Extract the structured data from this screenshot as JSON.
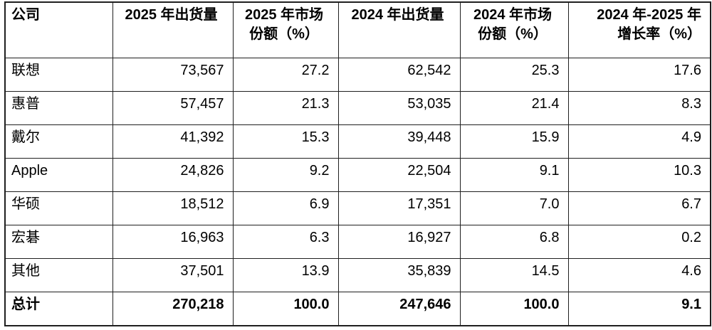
{
  "header": {
    "company": "公司",
    "ship2025": "2025 年出货量",
    "share2025_line1": "2025 年市场",
    "share2025_line2": "份额（%）",
    "ship2024": "2024 年出货量",
    "share2024_line1": "2024 年市场",
    "share2024_line2": "份额（%）",
    "growth_line1": "2024 年-2025 年",
    "growth_line2": "增长率（%）"
  },
  "rows": [
    {
      "bold": false,
      "cells": [
        "联想",
        "73,567",
        "27.2",
        "62,542",
        "25.3",
        "17.6"
      ]
    },
    {
      "bold": false,
      "cells": [
        "惠普",
        "57,457",
        "21.3",
        "53,035",
        "21.4",
        "8.3"
      ]
    },
    {
      "bold": false,
      "cells": [
        "戴尔",
        "41,392",
        "15.3",
        "39,448",
        "15.9",
        "4.9"
      ]
    },
    {
      "bold": false,
      "cells": [
        "Apple",
        "24,826",
        "9.2",
        "22,504",
        "9.1",
        "10.3"
      ]
    },
    {
      "bold": false,
      "cells": [
        "华硕",
        "18,512",
        "6.9",
        "17,351",
        "7.0",
        "6.7"
      ]
    },
    {
      "bold": false,
      "cells": [
        "宏碁",
        "16,963",
        "6.3",
        "16,927",
        "6.8",
        "0.2"
      ]
    },
    {
      "bold": false,
      "cells": [
        "其他",
        "37,501",
        "13.9",
        "35,839",
        "14.5",
        "4.6"
      ]
    },
    {
      "bold": true,
      "cells": [
        "总计",
        "270,218",
        "100.0",
        "247,646",
        "100.0",
        "9.1"
      ]
    }
  ],
  "colors": {
    "border": "#1f1f1f",
    "text": "#000000",
    "background": "#ffffff"
  }
}
